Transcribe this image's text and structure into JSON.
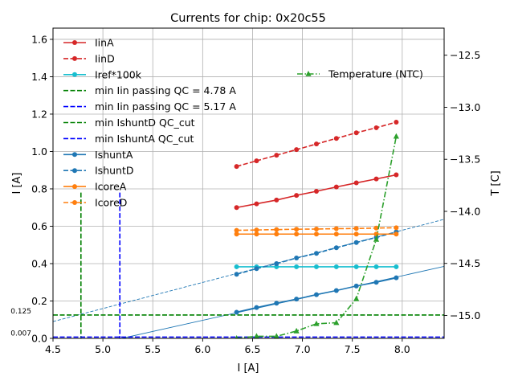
{
  "chart_data": {
    "type": "line",
    "title": "Currents for chip: 0x20c55",
    "xlabel": "I [A]",
    "ylabel": "I [A]",
    "y2label": "T [C]",
    "xlim": [
      4.5,
      8.42
    ],
    "ylim": [
      0,
      1.66
    ],
    "y2lim": [
      -15.22,
      -12.24
    ],
    "grid": true,
    "legend_placement": "top-left",
    "x_ticks": [
      "4.5",
      "5.0",
      "5.5",
      "6.0",
      "6.5",
      "7.0",
      "7.5",
      "8.0"
    ],
    "y_ticks": [
      "0.0",
      "0.2",
      "0.4",
      "0.6",
      "0.8",
      "1.0",
      "1.2",
      "1.4",
      "1.6"
    ],
    "y2_ticks": [
      "−15.0",
      "−14.5",
      "−14.0",
      "−13.5",
      "−13.0",
      "−12.5"
    ],
    "x": [
      6.34,
      6.54,
      6.74,
      6.94,
      7.14,
      7.34,
      7.54,
      7.74,
      7.94
    ],
    "series": [
      {
        "name": "IinA",
        "color": "#d62728",
        "style": "solid",
        "marker": "circle",
        "values": [
          0.7,
          0.72,
          0.74,
          0.765,
          0.787,
          0.81,
          0.832,
          0.853,
          0.875
        ]
      },
      {
        "name": "IinD",
        "color": "#d62728",
        "style": "dashed",
        "marker": "circle",
        "values": [
          0.92,
          0.95,
          0.98,
          1.01,
          1.04,
          1.07,
          1.1,
          1.127,
          1.157
        ]
      },
      {
        "name": "Iref*100k",
        "color": "#17becf",
        "style": "solid",
        "marker": "circle",
        "values": [
          0.383,
          0.383,
          0.383,
          0.383,
          0.383,
          0.383,
          0.383,
          0.383,
          0.383
        ]
      },
      {
        "name": "IshuntA",
        "color": "#1f77b4",
        "style": "solid",
        "marker": "circle",
        "values": [
          0.14,
          0.165,
          0.188,
          0.21,
          0.234,
          0.256,
          0.28,
          0.3,
          0.324
        ]
      },
      {
        "name": "IshuntD",
        "color": "#1f77b4",
        "style": "dashed",
        "marker": "circle",
        "values": [
          0.343,
          0.373,
          0.4,
          0.43,
          0.455,
          0.485,
          0.513,
          0.54,
          0.57
        ]
      },
      {
        "name": "IcoreA",
        "color": "#ff7f0e",
        "style": "solid",
        "marker": "circle",
        "values": [
          0.558,
          0.558,
          0.558,
          0.558,
          0.558,
          0.558,
          0.558,
          0.558,
          0.558
        ]
      },
      {
        "name": "IcoreD",
        "color": "#ff7f0e",
        "style": "dashed",
        "marker": "circle",
        "values": [
          0.578,
          0.58,
          0.582,
          0.584,
          0.585,
          0.587,
          0.588,
          0.59,
          0.592
        ]
      }
    ],
    "temperature_series": {
      "name": "Temperature (NTC)",
      "color": "#2ca02c",
      "style": "dashdot",
      "marker": "triangle",
      "axis": "right",
      "x": [
        6.34,
        6.54,
        6.74,
        6.94,
        7.14,
        7.34,
        7.54,
        7.74,
        7.94
      ],
      "values": [
        -15.22,
        -15.2,
        -15.2,
        -15.15,
        -15.08,
        -15.07,
        -14.84,
        -14.27,
        -13.28
      ]
    },
    "fit_lines": [
      {
        "name": "IshuntA fit",
        "color": "#1f77b4",
        "style": "thin-solid",
        "x": [
          5.19,
          8.42
        ],
        "values": [
          0.0,
          0.385
        ]
      },
      {
        "name": "IshuntD fit",
        "color": "#1f77b4",
        "style": "thin-dashed",
        "x": [
          4.5,
          8.42
        ],
        "values": [
          0.09,
          0.637
        ]
      }
    ],
    "threshold_lines": [
      {
        "name": "min Iin passing QC = 4.78 A",
        "color": "#008000",
        "orientation": "vertical",
        "x": 4.78,
        "y_top": 0.78
      },
      {
        "name": "min Iin passing QC = 5.17 A",
        "color": "#0000ff",
        "orientation": "vertical",
        "x": 5.17,
        "y_top": 0.78
      },
      {
        "name": "min IshuntD QC_cut",
        "color": "#008000",
        "orientation": "horizontal",
        "y": 0.125,
        "label": "0.125"
      },
      {
        "name": "min IshuntA QC_cut",
        "color": "#0000ff",
        "orientation": "horizontal",
        "y": 0.007,
        "label": "0.007"
      }
    ],
    "legend_entries": [
      {
        "label": "IinA",
        "color": "#d62728",
        "style": "solid",
        "marker": "circle"
      },
      {
        "label": "IinD",
        "color": "#d62728",
        "style": "dashed",
        "marker": "circle"
      },
      {
        "label": "Iref*100k",
        "color": "#17becf",
        "style": "solid",
        "marker": "circle"
      },
      {
        "label": "min Iin passing QC = 4.78 A",
        "color": "#008000",
        "style": "dashed",
        "marker": "none"
      },
      {
        "label": "min Iin passing QC = 5.17 A",
        "color": "#0000ff",
        "style": "dashed",
        "marker": "none"
      },
      {
        "label": "min IshuntD QC_cut",
        "color": "#008000",
        "style": "dashed",
        "marker": "none"
      },
      {
        "label": "min IshuntA QC_cut",
        "color": "#0000ff",
        "style": "dashed",
        "marker": "none"
      },
      {
        "label": "IshuntA",
        "color": "#1f77b4",
        "style": "solid",
        "marker": "circle"
      },
      {
        "label": "IshuntD",
        "color": "#1f77b4",
        "style": "dashed",
        "marker": "circle"
      },
      {
        "label": "IcoreA",
        "color": "#ff7f0e",
        "style": "solid",
        "marker": "circle"
      },
      {
        "label": "IcoreD",
        "color": "#ff7f0e",
        "style": "dashed",
        "marker": "circle"
      }
    ],
    "legend2_entries": [
      {
        "label": "Temperature (NTC)",
        "color": "#2ca02c",
        "style": "dashdot",
        "marker": "triangle"
      }
    ]
  }
}
